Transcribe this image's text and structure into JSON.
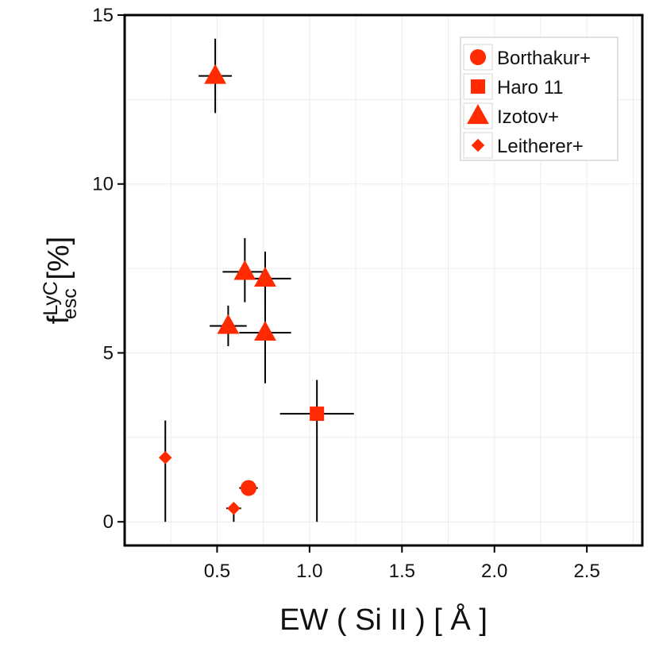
{
  "chart_data": {
    "type": "scatter",
    "xlabel": "EW ( Si II ) [ Å ]",
    "ylabel": {
      "base": "f",
      "sup": "LyC",
      "sub": "esc",
      "unit": " [%]"
    },
    "xlim": [
      0.0,
      2.8
    ],
    "ylim": [
      -0.7,
      15.0
    ],
    "xticks": [
      0.5,
      1.0,
      1.5,
      2.0,
      2.5
    ],
    "xtick_labels": [
      "0.5",
      "1.0",
      "1.5",
      "2.0",
      "2.5"
    ],
    "yticks": [
      0,
      5,
      10,
      15
    ],
    "ytick_labels": [
      "0",
      "5",
      "10",
      "15"
    ],
    "grid": true,
    "legend_position": "top-right",
    "marker_color": "#ff2a00",
    "series": [
      {
        "name": "Borthakur+",
        "marker": "circle",
        "points": [
          {
            "x": 0.67,
            "y": 1.0,
            "x_err": [
              0.05,
              0.05
            ],
            "y_err": [
              0,
              0
            ]
          }
        ]
      },
      {
        "name": "Haro 11",
        "marker": "square",
        "points": [
          {
            "x": 1.04,
            "y": 3.2,
            "x_err": [
              0.2,
              0.2
            ],
            "y_err": [
              3.2,
              1.0
            ]
          }
        ]
      },
      {
        "name": "Izotov+",
        "marker": "triangle",
        "points": [
          {
            "x": 0.49,
            "y": 13.2,
            "x_err": [
              0.09,
              0.09
            ],
            "y_err": [
              1.1,
              1.1
            ]
          },
          {
            "x": 0.65,
            "y": 7.4,
            "x_err": [
              0.12,
              0.12
            ],
            "y_err": [
              0.9,
              1.0
            ]
          },
          {
            "x": 0.76,
            "y": 7.2,
            "x_err": [
              0.14,
              0.14
            ],
            "y_err": [
              0.8,
              0.8
            ]
          },
          {
            "x": 0.56,
            "y": 5.8,
            "x_err": [
              0.1,
              0.1
            ],
            "y_err": [
              0.6,
              0.6
            ]
          },
          {
            "x": 0.76,
            "y": 5.6,
            "x_err": [
              0.14,
              0.14
            ],
            "y_err": [
              1.5,
              1.5
            ]
          }
        ]
      },
      {
        "name": "Leitherer+",
        "marker": "diamond",
        "points": [
          {
            "x": 0.22,
            "y": 1.9,
            "x_err": [
              0,
              0
            ],
            "y_err": [
              1.9,
              1.1
            ]
          },
          {
            "x": 0.59,
            "y": 0.4,
            "x_err": [
              0.04,
              0.04
            ],
            "y_err": [
              0.4,
              0
            ]
          }
        ]
      }
    ]
  }
}
